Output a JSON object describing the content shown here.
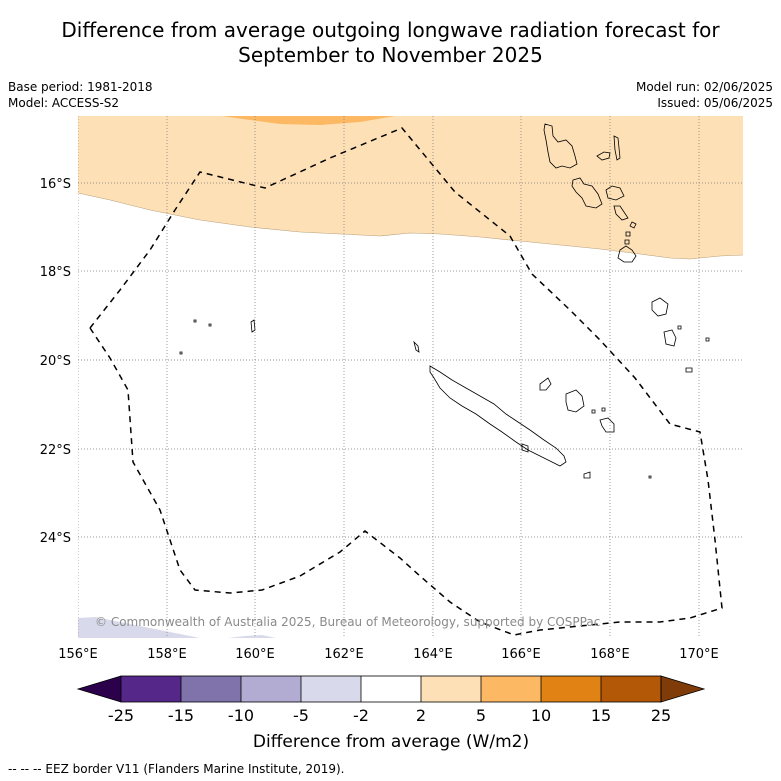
{
  "title": "Difference from average outgoing longwave radiation forecast for September to November 2025",
  "title_line1": "Difference from average outgoing longwave radiation forecast for",
  "title_line2": "September to November 2025",
  "meta_left": {
    "base_period": "Base period: 1981-2018",
    "model": "Model: ACCESS-S2"
  },
  "meta_right": {
    "model_run": "Model run: 02/06/2025",
    "issued": "Issued: 05/06/2025"
  },
  "copyright": "© Commonwealth of Australia 2025, Bureau of Meteorology, supported by COSPPac",
  "lat_ticks": [
    "16°S",
    "18°S",
    "20°S",
    "22°S",
    "24°S"
  ],
  "lon_ticks": [
    "156°E",
    "158°E",
    "160°E",
    "162°E",
    "164°E",
    "166°E",
    "168°E",
    "170°E"
  ],
  "colorbar": {
    "ticks": [
      "-25",
      "-15",
      "-10",
      "-5",
      "-2",
      "2",
      "5",
      "10",
      "15",
      "25"
    ],
    "colors": [
      "#2d004b",
      "#542788",
      "#8073ac",
      "#b2abd2",
      "#d8daeb",
      "#ffffff",
      "#fee0b6",
      "#fdb863",
      "#e08214",
      "#b35806",
      "#7f3b08"
    ],
    "label": "Difference from average (W/m2)"
  },
  "legend_footer": "--  --  -- EEZ border V11 (Flanders Marine Institute, 2019).",
  "map": {
    "extent": {
      "lon": [
        156,
        171
      ],
      "lat": [
        -14.5,
        -26
      ]
    },
    "eez_border_color": "#000000",
    "positive_anomaly_color": "#fee0b6",
    "strong_positive_color": "#fdb863",
    "negative_anomaly_color": "#d8daeb"
  }
}
